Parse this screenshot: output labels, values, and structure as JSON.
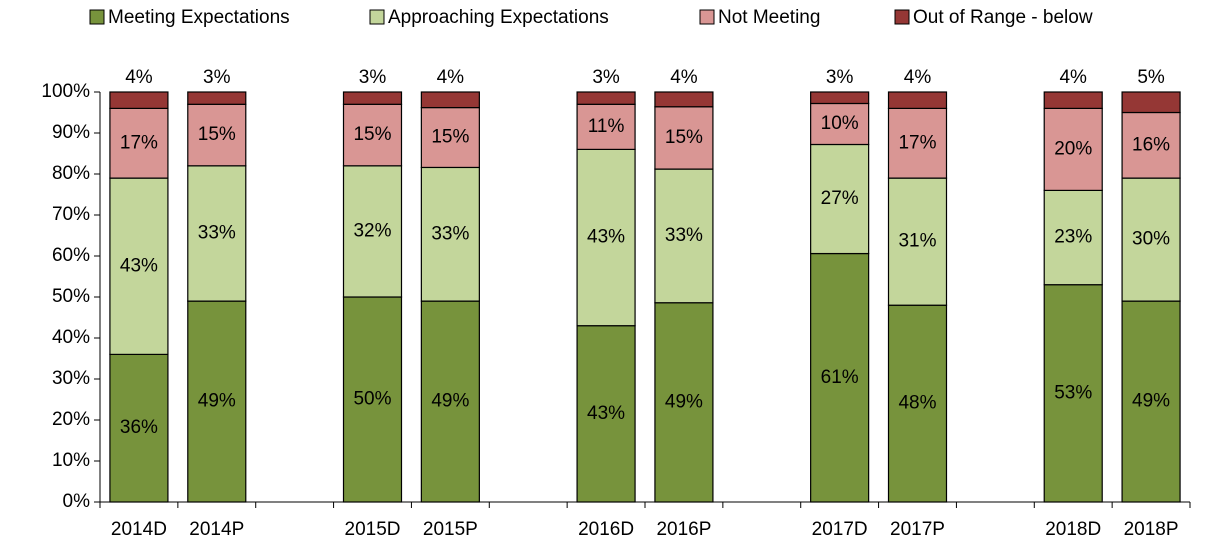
{
  "chart_data": {
    "type": "stacked_bar",
    "categories": [
      "2014D",
      "2014P",
      null,
      "2015D",
      "2015P",
      null,
      "2016D",
      "2016P",
      null,
      "2017D",
      "2017P",
      null,
      "2018D",
      "2018P"
    ],
    "series": [
      {
        "name": "Meeting Expectations",
        "color": "#77933c",
        "values": [
          36,
          49,
          null,
          50,
          49,
          null,
          43,
          48.6,
          null,
          60.6,
          48,
          null,
          53,
          49
        ],
        "value_labels": [
          "36%",
          "49%",
          null,
          "50%",
          "49%",
          null,
          "43%",
          "49%",
          null,
          "61%",
          "48%",
          null,
          "53%",
          "49%"
        ]
      },
      {
        "name": "Approaching Expectations",
        "color": "#c3d69b",
        "values": [
          43,
          33,
          null,
          32,
          32.6,
          null,
          43,
          32.6,
          null,
          26.6,
          31,
          null,
          23,
          30
        ],
        "value_labels": [
          "43%",
          "33%",
          null,
          "32%",
          "33%",
          null,
          "43%",
          "33%",
          null,
          "27%",
          "31%",
          null,
          "23%",
          "30%"
        ]
      },
      {
        "name": "Not Meeting",
        "color": "#d99694",
        "values": [
          17,
          15,
          null,
          15,
          14.6,
          null,
          11,
          15.2,
          null,
          10,
          17,
          null,
          20,
          16
        ],
        "value_labels": [
          "17%",
          "15%",
          null,
          "15%",
          "15%",
          null,
          "11%",
          "15%",
          null,
          "10%",
          "17%",
          null,
          "20%",
          "16%"
        ]
      },
      {
        "name": "Out of Range - below",
        "color": "#953735",
        "values": [
          4,
          3,
          null,
          3,
          3.8,
          null,
          3,
          3.6,
          null,
          2.8,
          4,
          null,
          4,
          5
        ],
        "value_labels": [
          "4%",
          "3%",
          null,
          "3%",
          "4%",
          null,
          "3%",
          "4%",
          null,
          "3%",
          "4%",
          null,
          "4%",
          "5%"
        ]
      }
    ],
    "ylim": [
      0,
      100
    ],
    "yticks": [
      {
        "value": 0,
        "label": "0%"
      },
      {
        "value": 10,
        "label": "10%"
      },
      {
        "value": 20,
        "label": "20%"
      },
      {
        "value": 30,
        "label": "30%"
      },
      {
        "value": 40,
        "label": "40%"
      },
      {
        "value": 50,
        "label": "50%"
      },
      {
        "value": 60,
        "label": "60%"
      },
      {
        "value": 70,
        "label": "70%"
      },
      {
        "value": 80,
        "label": "80%"
      },
      {
        "value": 90,
        "label": "90%"
      },
      {
        "value": 100,
        "label": "100%"
      }
    ],
    "legend": "top"
  }
}
